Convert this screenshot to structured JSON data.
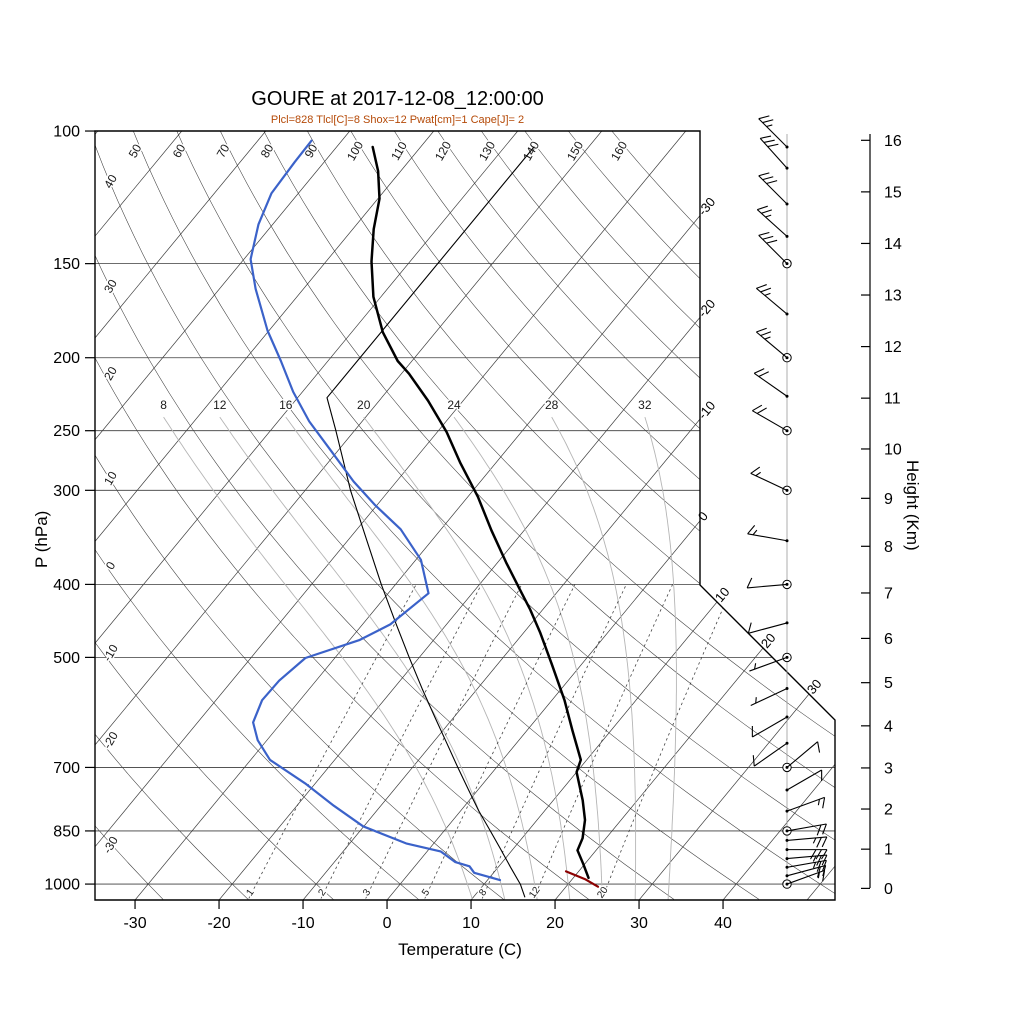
{
  "chart_data": {
    "type": "skewt-log-p",
    "title": "GOURE at 2017-12-08_12:00:00",
    "subtitle": "Plcl=828 Tlcl[C]=8 Shox=12 Pwat[cm]=1 Cape[J]= 2",
    "x_axis": {
      "label": "Temperature (C)",
      "unit": "C",
      "ticks": [
        -30,
        -20,
        -10,
        0,
        10,
        20,
        30,
        40
      ]
    },
    "y_axis": {
      "label": "P (hPa)",
      "unit": "hPa",
      "ticks": [
        100,
        150,
        200,
        250,
        300,
        400,
        500,
        700,
        850,
        1000
      ]
    },
    "height_axis": {
      "label": "Height (Km)",
      "unit": "km",
      "ticks": [
        0,
        1,
        2,
        3,
        4,
        5,
        6,
        7,
        8,
        9,
        10,
        11,
        12,
        13,
        14,
        15,
        16
      ]
    },
    "background": {
      "isotherms": {
        "start": -110,
        "end": 50,
        "step": 10,
        "edge_labels": [
          -30,
          -20,
          -10,
          0,
          10,
          20,
          30
        ]
      },
      "dry_adiabats": {
        "start": -30,
        "end": 160,
        "step": 10,
        "top_labels": [
          50,
          60,
          70,
          80,
          90,
          100,
          110,
          120,
          130,
          140,
          150,
          160
        ],
        "left_labels": [
          40,
          30,
          20,
          10,
          0,
          -10,
          -20,
          -30
        ]
      },
      "moist_adiabats": [
        8,
        12,
        16,
        20,
        24,
        28,
        32
      ],
      "mixing_ratio_lines": [
        1,
        2,
        3,
        5,
        8,
        12,
        20
      ]
    },
    "series": [
      {
        "name": "reference",
        "color": "#000000",
        "width": 1.1,
        "points": [
          [
            105,
            -56.5
          ],
          [
            226,
            -56.5
          ],
          [
            250,
            -52.2
          ],
          [
            300,
            -44.6
          ],
          [
            350,
            -37.7
          ],
          [
            400,
            -31.7
          ],
          [
            450,
            -26.2
          ],
          [
            500,
            -21.2
          ],
          [
            550,
            -16.6
          ],
          [
            600,
            -12.3
          ],
          [
            650,
            -8.3
          ],
          [
            700,
            -4.6
          ],
          [
            750,
            -1.1
          ],
          [
            800,
            2.2
          ],
          [
            850,
            5.5
          ],
          [
            900,
            8.6
          ],
          [
            950,
            11.5
          ],
          [
            1000,
            14.3
          ],
          [
            1040,
            16.1
          ]
        ]
      },
      {
        "name": "parcel",
        "color": "#8b0000",
        "width": 2.2,
        "points": [
          [
            1008,
            23.8
          ],
          [
            985,
            21.5
          ],
          [
            962,
            18.5
          ]
        ]
      },
      {
        "name": "dewpoint",
        "color": "#3b62c9",
        "width": 2.2,
        "points": [
          [
            988,
            11.5
          ],
          [
            966,
            7.7
          ],
          [
            947,
            6.5
          ],
          [
            935,
            4.4
          ],
          [
            905,
            1.6
          ],
          [
            883,
            -3.3
          ],
          [
            838,
            -10.1
          ],
          [
            787,
            -15.6
          ],
          [
            735,
            -21.2
          ],
          [
            684,
            -27.7
          ],
          [
            644,
            -31.1
          ],
          [
            610,
            -33.4
          ],
          [
            570,
            -34.5
          ],
          [
            537,
            -34.4
          ],
          [
            501,
            -33.5
          ],
          [
            474,
            -28.8
          ],
          [
            452,
            -26.7
          ],
          [
            411,
            -25.2
          ],
          [
            371,
            -29.4
          ],
          [
            338,
            -34.8
          ],
          [
            314,
            -40.2
          ],
          [
            292,
            -45.1
          ],
          [
            265,
            -51.0
          ],
          [
            243,
            -56.3
          ],
          [
            222,
            -61.1
          ],
          [
            202,
            -65.6
          ],
          [
            184,
            -70.2
          ],
          [
            162,
            -75.7
          ],
          [
            148,
            -79.2
          ],
          [
            133,
            -81.7
          ],
          [
            121,
            -83.2
          ],
          [
            110,
            -83.5
          ],
          [
            103,
            -83.6
          ]
        ]
      },
      {
        "name": "temperature",
        "color": "#000000",
        "width": 2.5,
        "points": [
          [
            981,
            21.8
          ],
          [
            940,
            19.8
          ],
          [
            902,
            17.8
          ],
          [
            869,
            17.2
          ],
          [
            822,
            15.7
          ],
          [
            774,
            13.5
          ],
          [
            710,
            10.0
          ],
          [
            684,
            9.3
          ],
          [
            625,
            5.4
          ],
          [
            570,
            1.5
          ],
          [
            510,
            -3.6
          ],
          [
            464,
            -8.0
          ],
          [
            432,
            -11.5
          ],
          [
            411,
            -14.1
          ],
          [
            374,
            -19.0
          ],
          [
            339,
            -23.9
          ],
          [
            306,
            -28.8
          ],
          [
            276,
            -34.2
          ],
          [
            251,
            -38.9
          ],
          [
            228,
            -44.2
          ],
          [
            210,
            -49.1
          ],
          [
            202,
            -51.7
          ],
          [
            185,
            -56.3
          ],
          [
            166,
            -60.9
          ],
          [
            149,
            -64.6
          ],
          [
            135,
            -67.5
          ],
          [
            123,
            -69.8
          ],
          [
            113,
            -72.7
          ],
          [
            105,
            -75.7
          ]
        ]
      }
    ],
    "winds": {
      "circle_levels": [
        1000,
        850,
        700,
        500,
        400,
        300,
        250,
        200,
        150
      ],
      "barbs": [
        {
          "p": 1000,
          "dir": 70,
          "spd": 15
        },
        {
          "p": 975,
          "dir": 75,
          "spd": 20
        },
        {
          "p": 950,
          "dir": 80,
          "spd": 25
        },
        {
          "p": 925,
          "dir": 85,
          "spd": 25
        },
        {
          "p": 900,
          "dir": 90,
          "spd": 30
        },
        {
          "p": 875,
          "dir": 85,
          "spd": 25
        },
        {
          "p": 850,
          "dir": 80,
          "spd": 20
        },
        {
          "p": 800,
          "dir": 70,
          "spd": 15
        },
        {
          "p": 750,
          "dir": 60,
          "spd": 10
        },
        {
          "p": 700,
          "dir": 50,
          "spd": 10
        },
        {
          "p": 650,
          "dir": 235,
          "spd": 10
        },
        {
          "p": 600,
          "dir": 240,
          "spd": 10
        },
        {
          "p": 550,
          "dir": 245,
          "spd": 5
        },
        {
          "p": 500,
          "dir": 250,
          "spd": 5
        },
        {
          "p": 450,
          "dir": 255,
          "spd": 10
        },
        {
          "p": 400,
          "dir": 265,
          "spd": 10
        },
        {
          "p": 350,
          "dir": 280,
          "spd": 15
        },
        {
          "p": 300,
          "dir": 295,
          "spd": 15
        },
        {
          "p": 250,
          "dir": 300,
          "spd": 20
        },
        {
          "p": 225,
          "dir": 305,
          "spd": 20
        },
        {
          "p": 200,
          "dir": 310,
          "spd": 25
        },
        {
          "p": 175,
          "dir": 310,
          "spd": 25
        },
        {
          "p": 150,
          "dir": 315,
          "spd": 30
        },
        {
          "p": 138,
          "dir": 312,
          "spd": 25
        },
        {
          "p": 125,
          "dir": 315,
          "spd": 30
        },
        {
          "p": 112,
          "dir": 318,
          "spd": 30
        },
        {
          "p": 105,
          "dir": 315,
          "spd": 25
        }
      ]
    },
    "style": {
      "subtitle_color": "#b54a08",
      "grid_color": "#3c3c3c",
      "moist_adiabat_color": "#b5b5b5",
      "mixing_ratio_color": "#444444",
      "dewpoint_color": "#3b62c9",
      "parcel_color": "#8b0000",
      "background_color": "#ffffff"
    }
  }
}
